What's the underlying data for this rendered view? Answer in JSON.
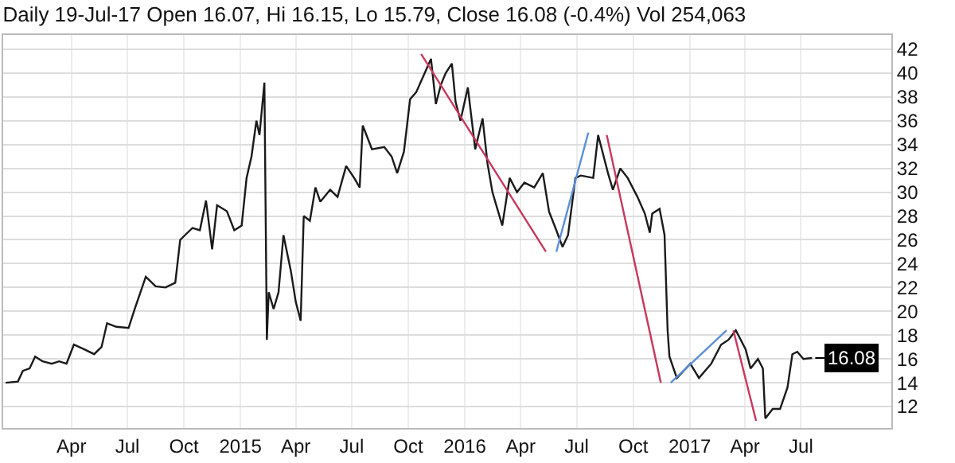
{
  "chart_data": {
    "type": "line",
    "title": "Daily 19-Jul-17 Open 16.07, Hi 16.15, Lo 15.79, Close 16.08 (-0.4%) Vol 254,063",
    "series": [
      {
        "color": "#1a1a1a",
        "x": [
          "2013-12-15",
          "2014-01-04",
          "2014-01-12",
          "2014-01-23",
          "2014-02-01",
          "2014-02-13",
          "2014-02-28",
          "2014-03-12",
          "2014-03-24",
          "2014-04-05",
          "2014-04-22",
          "2014-05-08",
          "2014-05-20",
          "2014-05-29",
          "2014-06-13",
          "2014-07-03",
          "2014-07-13",
          "2014-07-31",
          "2014-08-16",
          "2014-09-01",
          "2014-09-17",
          "2014-09-25",
          "2014-10-15",
          "2014-10-27",
          "2014-11-06",
          "2014-11-16",
          "2014-11-24",
          "2014-12-10",
          "2014-12-22",
          "2015-01-03",
          "2015-01-11",
          "2015-01-19",
          "2015-01-27",
          "2015-02-01",
          "2015-02-09",
          "2015-02-13",
          "2015-02-16",
          "2015-02-24",
          "2015-03-04",
          "2015-03-12",
          "2015-03-24",
          "2015-04-01",
          "2015-04-09",
          "2015-04-14",
          "2015-04-24",
          "2015-05-03",
          "2015-05-11",
          "2015-05-27",
          "2015-06-08",
          "2015-06-22",
          "2015-07-05",
          "2015-07-14",
          "2015-07-19",
          "2015-08-03",
          "2015-08-23",
          "2015-09-04",
          "2015-09-13",
          "2015-09-24",
          "2015-10-04",
          "2015-10-14",
          "2015-10-26",
          "2015-11-07",
          "2015-11-15",
          "2015-11-23",
          "2015-12-01",
          "2015-12-11",
          "2015-12-17",
          "2015-12-25",
          "2016-01-06",
          "2016-01-18",
          "2016-01-30",
          "2016-02-07",
          "2016-02-15",
          "2016-03-02",
          "2016-03-14",
          "2016-03-26",
          "2016-04-07",
          "2016-04-23",
          "2016-05-07",
          "2016-05-17",
          "2016-05-29",
          "2016-06-08",
          "2016-06-17",
          "2016-06-29",
          "2016-07-08",
          "2016-07-28",
          "2016-08-05",
          "2016-08-11",
          "2016-08-21",
          "2016-08-29",
          "2016-09-10",
          "2016-09-22",
          "2016-10-08",
          "2016-10-20",
          "2016-10-28",
          "2016-11-01",
          "2016-11-13",
          "2016-11-21",
          "2016-11-26",
          "2016-11-29",
          "2016-12-11",
          "2017-01-02",
          "2017-01-16",
          "2017-02-05",
          "2017-02-21",
          "2017-03-05",
          "2017-03-17",
          "2017-04-02",
          "2017-04-10",
          "2017-04-22",
          "2017-04-30",
          "2017-05-04",
          "2017-05-16",
          "2017-05-28",
          "2017-06-09",
          "2017-06-17",
          "2017-06-25",
          "2017-07-05",
          "2017-07-19"
        ],
        "values": [
          14.0,
          14.1,
          15.0,
          15.2,
          16.2,
          15.8,
          15.6,
          15.8,
          15.6,
          17.2,
          16.8,
          16.4,
          17.0,
          19.0,
          18.7,
          18.6,
          20.2,
          22.9,
          22.1,
          22.0,
          22.4,
          26.0,
          27.0,
          26.8,
          29.3,
          25.2,
          28.9,
          28.4,
          26.8,
          27.2,
          31.2,
          33.0,
          36.0,
          34.8,
          39.2,
          17.6,
          21.6,
          20.2,
          21.6,
          26.4,
          23.4,
          20.8,
          19.2,
          28.0,
          27.6,
          30.4,
          29.2,
          30.2,
          29.6,
          32.2,
          31.2,
          30.4,
          35.6,
          33.6,
          33.8,
          33.0,
          31.6,
          33.4,
          37.8,
          38.4,
          39.8,
          41.2,
          37.4,
          39.0,
          40.0,
          40.8,
          37.6,
          36.0,
          38.8,
          33.6,
          36.2,
          32.4,
          30.0,
          27.2,
          31.2,
          30.0,
          30.8,
          30.4,
          31.6,
          28.4,
          26.8,
          25.4,
          26.4,
          31.2,
          31.4,
          31.2,
          34.8,
          33.6,
          31.6,
          30.2,
          32.0,
          31.2,
          29.6,
          28.2,
          26.6,
          28.2,
          28.6,
          26.4,
          18.4,
          16.2,
          14.4,
          15.6,
          14.4,
          15.6,
          17.2,
          17.6,
          18.4,
          16.8,
          15.2,
          16.0,
          15.2,
          11.0,
          11.8,
          11.8,
          13.6,
          16.4,
          16.6,
          16.0,
          16.08
        ]
      },
      {
        "color": "#c8385e",
        "x": [
          "2015-10-22",
          "2016-05-12"
        ],
        "values": [
          41.6,
          25.0
        ]
      },
      {
        "color": "#5b8fd6",
        "x": [
          "2016-05-29",
          "2016-07-20"
        ],
        "values": [
          25.0,
          35.0
        ]
      },
      {
        "color": "#c8385e",
        "x": [
          "2016-08-19",
          "2016-11-15"
        ],
        "values": [
          34.8,
          14.0
        ]
      },
      {
        "color": "#5b8fd6",
        "x": [
          "2016-12-01",
          "2017-03-02"
        ],
        "values": [
          14.0,
          18.4
        ]
      },
      {
        "color": "#c8385e",
        "x": [
          "2017-03-13",
          "2017-04-19"
        ],
        "values": [
          18.4,
          10.8
        ]
      }
    ],
    "annotations": [
      {
        "text": "16.08",
        "x": "2017-07-19",
        "y": 16.08
      }
    ],
    "xlim": [
      "2013-12-11",
      "2017-11-25"
    ],
    "xticks": [
      {
        "value": "2014-04-01",
        "label": "Apr"
      },
      {
        "value": "2014-07-01",
        "label": "Jul"
      },
      {
        "value": "2014-10-01",
        "label": "Oct"
      },
      {
        "value": "2015-01-01",
        "label": "2015"
      },
      {
        "value": "2015-04-01",
        "label": "Apr"
      },
      {
        "value": "2015-07-01",
        "label": "Jul"
      },
      {
        "value": "2015-10-01",
        "label": "Oct"
      },
      {
        "value": "2016-01-01",
        "label": "2016"
      },
      {
        "value": "2016-04-01",
        "label": "Apr"
      },
      {
        "value": "2016-07-01",
        "label": "Jul"
      },
      {
        "value": "2016-10-01",
        "label": "Oct"
      },
      {
        "value": "2017-01-01",
        "label": "2017"
      },
      {
        "value": "2017-04-01",
        "label": "Apr"
      },
      {
        "value": "2017-07-01",
        "label": "Jul"
      }
    ],
    "ylim": [
      10.2,
      43.2
    ],
    "yticks": [
      12,
      14,
      16,
      18,
      20,
      22,
      24,
      26,
      28,
      30,
      32,
      34,
      36,
      38,
      40,
      42
    ],
    "grid": true,
    "marker": "none",
    "line_style": "solid"
  }
}
